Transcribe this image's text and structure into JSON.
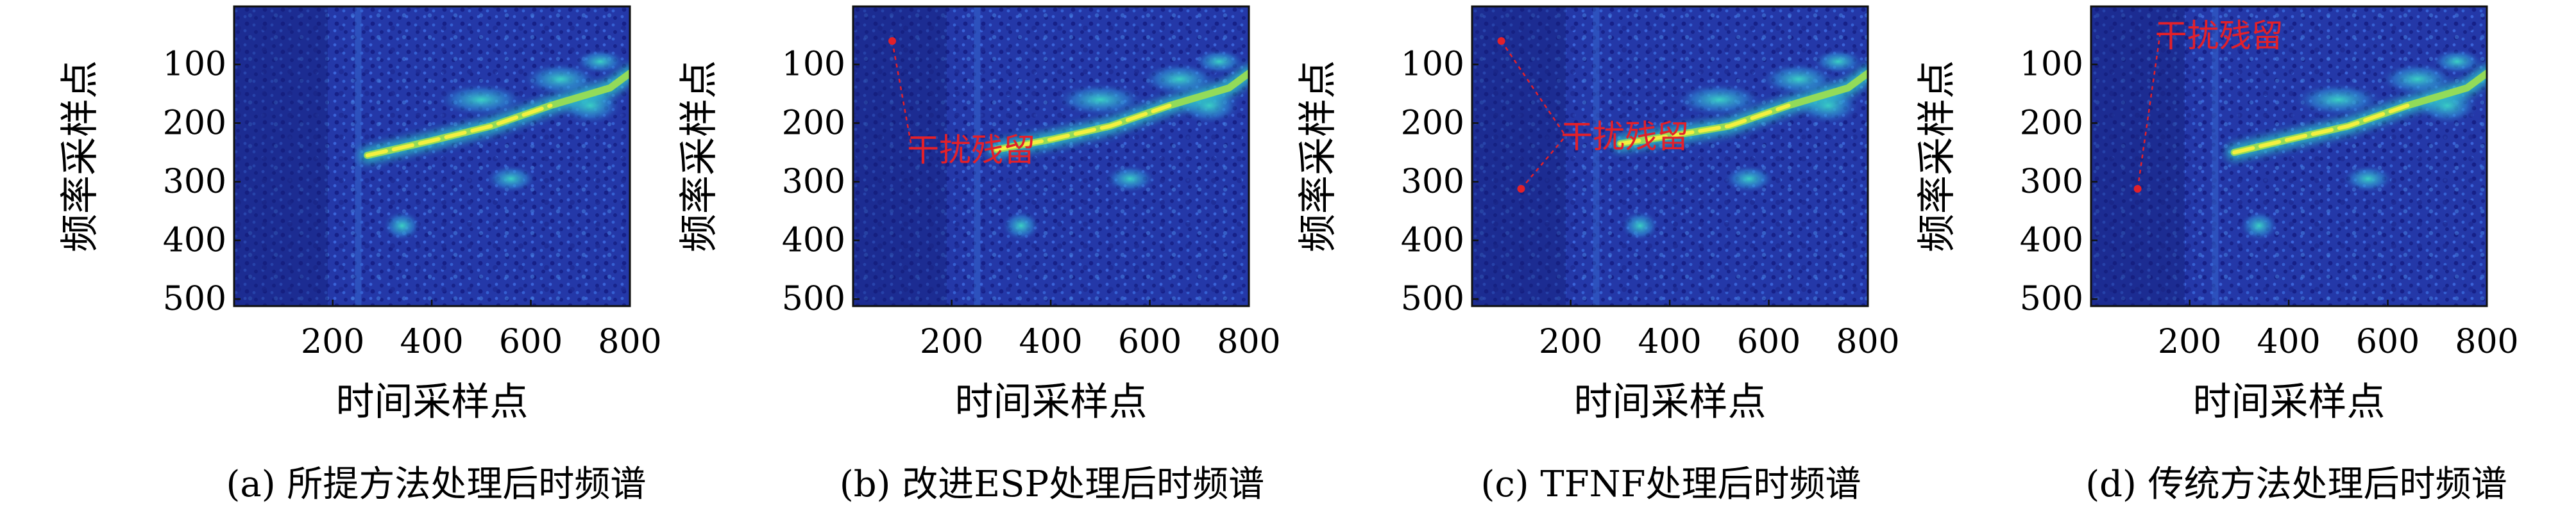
{
  "colors": {
    "background": "#1f2f96",
    "speckle": "#3a63d8",
    "dark": "#141f78",
    "ridge_mid": "#2fc8c8",
    "ridge_hot": "#f4f040",
    "annotation": "#e2202a"
  },
  "chart_data": [
    {
      "type": "heatmap",
      "caption": "(a) 所提方法处理后时频谱",
      "xlabel": "时间采样点",
      "ylabel": "频率采样点",
      "xticks": [
        200,
        400,
        600,
        800
      ],
      "yticks": [
        100,
        200,
        300,
        400,
        500
      ],
      "xlim": [
        1,
        800
      ],
      "ylim": [
        1,
        512
      ],
      "ridge": {
        "x": [
          270,
          400,
          520,
          640,
          760,
          800
        ],
        "y": [
          255,
          230,
          205,
          170,
          140,
          115
        ]
      },
      "annotation": null
    },
    {
      "type": "heatmap",
      "caption": "(b) 改进ESP处理后时频谱",
      "xlabel": "时间采样点",
      "ylabel": "频率采样点",
      "xticks": [
        200,
        400,
        600,
        800
      ],
      "yticks": [
        100,
        200,
        300,
        400,
        500
      ],
      "xlim": [
        1,
        800
      ],
      "ylim": [
        1,
        512
      ],
      "ridge": {
        "x": [
          290,
          400,
          520,
          640,
          760,
          800
        ],
        "y": [
          245,
          228,
          205,
          170,
          140,
          115
        ]
      },
      "annotation": {
        "text": "干扰残留",
        "text_x": 110,
        "text_y": 245,
        "points": [
          [
            80,
            60
          ]
        ]
      }
    },
    {
      "type": "heatmap",
      "caption": "(c) TFNF处理后时频谱",
      "xlabel": "时间采样点",
      "ylabel": "频率采样点",
      "xticks": [
        200,
        400,
        600,
        800
      ],
      "yticks": [
        100,
        200,
        300,
        400,
        500
      ],
      "xlim": [
        1,
        800
      ],
      "ylim": [
        1,
        512
      ],
      "ridge": {
        "x": [
          300,
          400,
          520,
          640,
          760,
          800
        ],
        "y": [
          235,
          222,
          205,
          170,
          140,
          115
        ]
      },
      "annotation": {
        "text": "干扰残留",
        "text_x": 180,
        "text_y": 222,
        "points": [
          [
            60,
            60
          ],
          [
            100,
            312
          ]
        ]
      }
    },
    {
      "type": "heatmap",
      "caption": "(d) 传统方法处理后时频谱",
      "xlabel": "时间采样点",
      "ylabel": "频率采样点",
      "xticks": [
        200,
        400,
        600,
        800
      ],
      "yticks": [
        100,
        200,
        300,
        400,
        500
      ],
      "xlim": [
        1,
        800
      ],
      "ylim": [
        1,
        512
      ],
      "ridge": {
        "x": [
          290,
          400,
          520,
          640,
          760,
          800
        ],
        "y": [
          250,
          228,
          205,
          170,
          140,
          115
        ]
      },
      "annotation": {
        "text": "干扰残留",
        "text_x": 130,
        "text_y": 50,
        "points": [
          [
            95,
            312
          ]
        ]
      }
    }
  ]
}
